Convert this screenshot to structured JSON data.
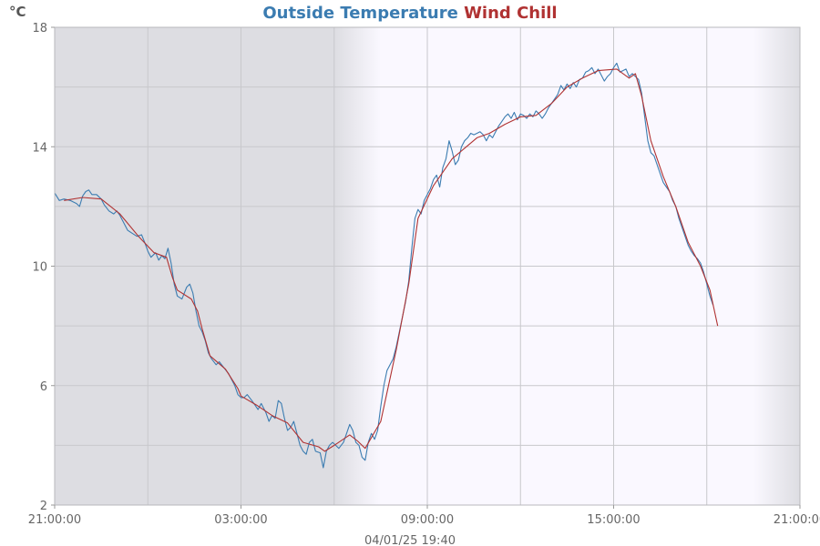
{
  "chart_data": {
    "type": "line",
    "title": [
      {
        "text": "Outside Temperature",
        "color": "#3b7cb1"
      },
      {
        "text": "Wind Chill",
        "color": "#b03232"
      }
    ],
    "ylabel": "°C",
    "footer": "04/01/25 19:40",
    "ylim": [
      2,
      18
    ],
    "yticks": [
      2,
      6,
      10,
      14,
      18
    ],
    "xlim_hours": [
      0,
      24
    ],
    "xtick_labels": [
      {
        "h": 0,
        "label": "21:00:00"
      },
      {
        "h": 6,
        "label": "03:00:00"
      },
      {
        "h": 12,
        "label": "09:00:00"
      },
      {
        "h": 18,
        "label": "15:00:00"
      },
      {
        "h": 24,
        "label": "21:00:00"
      }
    ],
    "x_gridlines_hours": [
      3,
      6,
      9,
      12,
      15,
      18,
      21
    ],
    "night_shading": {
      "night_until_h": 9,
      "dawn_end_h": 10.5,
      "dusk_start_h": 22.5,
      "color": "#dddde2",
      "day_color": "#faf8ff"
    },
    "grid": true,
    "series": [
      {
        "name": "Outside Temperature",
        "color": "#3b7cb1",
        "points": [
          [
            0,
            12.45
          ],
          [
            0.15,
            12.2
          ],
          [
            0.3,
            12.25
          ],
          [
            0.5,
            12.2
          ],
          [
            0.7,
            12.1
          ],
          [
            0.8,
            12.0
          ],
          [
            0.9,
            12.35
          ],
          [
            1.0,
            12.5
          ],
          [
            1.1,
            12.55
          ],
          [
            1.2,
            12.4
          ],
          [
            1.35,
            12.4
          ],
          [
            1.5,
            12.25
          ],
          [
            1.6,
            12.05
          ],
          [
            1.75,
            11.85
          ],
          [
            1.9,
            11.75
          ],
          [
            2.0,
            11.85
          ],
          [
            2.1,
            11.7
          ],
          [
            2.2,
            11.5
          ],
          [
            2.35,
            11.2
          ],
          [
            2.5,
            11.1
          ],
          [
            2.65,
            11.0
          ],
          [
            2.8,
            11.05
          ],
          [
            2.9,
            10.8
          ],
          [
            3.0,
            10.5
          ],
          [
            3.1,
            10.3
          ],
          [
            3.25,
            10.45
          ],
          [
            3.35,
            10.2
          ],
          [
            3.45,
            10.35
          ],
          [
            3.55,
            10.25
          ],
          [
            3.65,
            10.6
          ],
          [
            3.75,
            10.1
          ],
          [
            3.85,
            9.4
          ],
          [
            3.95,
            9.0
          ],
          [
            4.1,
            8.9
          ],
          [
            4.25,
            9.3
          ],
          [
            4.35,
            9.4
          ],
          [
            4.45,
            9.1
          ],
          [
            4.55,
            8.5
          ],
          [
            4.65,
            8.0
          ],
          [
            4.75,
            7.8
          ],
          [
            4.85,
            7.5
          ],
          [
            4.95,
            7.1
          ],
          [
            5.05,
            6.9
          ],
          [
            5.2,
            6.7
          ],
          [
            5.3,
            6.8
          ],
          [
            5.45,
            6.6
          ],
          [
            5.6,
            6.4
          ],
          [
            5.7,
            6.2
          ],
          [
            5.8,
            6.0
          ],
          [
            5.9,
            5.7
          ],
          [
            6.0,
            5.6
          ],
          [
            6.1,
            5.6
          ],
          [
            6.2,
            5.7
          ],
          [
            6.35,
            5.5
          ],
          [
            6.45,
            5.35
          ],
          [
            6.55,
            5.2
          ],
          [
            6.65,
            5.4
          ],
          [
            6.8,
            5.1
          ],
          [
            6.9,
            4.8
          ],
          [
            7.0,
            5.0
          ],
          [
            7.1,
            4.9
          ],
          [
            7.2,
            5.5
          ],
          [
            7.3,
            5.4
          ],
          [
            7.4,
            4.9
          ],
          [
            7.5,
            4.5
          ],
          [
            7.6,
            4.6
          ],
          [
            7.7,
            4.8
          ],
          [
            7.8,
            4.4
          ],
          [
            7.9,
            4.0
          ],
          [
            8.0,
            3.8
          ],
          [
            8.1,
            3.7
          ],
          [
            8.2,
            4.1
          ],
          [
            8.3,
            4.2
          ],
          [
            8.4,
            3.8
          ],
          [
            8.55,
            3.75
          ],
          [
            8.65,
            3.25
          ],
          [
            8.75,
            3.8
          ],
          [
            8.85,
            4.0
          ],
          [
            8.95,
            4.1
          ],
          [
            9.05,
            4.0
          ],
          [
            9.15,
            3.9
          ],
          [
            9.3,
            4.1
          ],
          [
            9.4,
            4.4
          ],
          [
            9.5,
            4.7
          ],
          [
            9.6,
            4.5
          ],
          [
            9.7,
            4.1
          ],
          [
            9.8,
            4.0
          ],
          [
            9.9,
            3.6
          ],
          [
            10.0,
            3.5
          ],
          [
            10.1,
            4.1
          ],
          [
            10.2,
            4.4
          ],
          [
            10.3,
            4.2
          ],
          [
            10.4,
            4.5
          ],
          [
            10.5,
            5.3
          ],
          [
            10.6,
            6.0
          ],
          [
            10.7,
            6.5
          ],
          [
            10.8,
            6.7
          ],
          [
            10.9,
            6.9
          ],
          [
            11.0,
            7.3
          ],
          [
            11.1,
            7.8
          ],
          [
            11.2,
            8.3
          ],
          [
            11.3,
            8.8
          ],
          [
            11.4,
            9.5
          ],
          [
            11.5,
            10.6
          ],
          [
            11.6,
            11.6
          ],
          [
            11.7,
            11.9
          ],
          [
            11.8,
            11.75
          ],
          [
            11.9,
            12.2
          ],
          [
            12.0,
            12.4
          ],
          [
            12.1,
            12.6
          ],
          [
            12.2,
            12.9
          ],
          [
            12.3,
            13.05
          ],
          [
            12.4,
            12.65
          ],
          [
            12.5,
            13.3
          ],
          [
            12.6,
            13.6
          ],
          [
            12.7,
            14.2
          ],
          [
            12.8,
            13.85
          ],
          [
            12.9,
            13.4
          ],
          [
            13.0,
            13.55
          ],
          [
            13.1,
            14.0
          ],
          [
            13.2,
            14.2
          ],
          [
            13.3,
            14.3
          ],
          [
            13.4,
            14.45
          ],
          [
            13.5,
            14.4
          ],
          [
            13.6,
            14.45
          ],
          [
            13.7,
            14.5
          ],
          [
            13.8,
            14.4
          ],
          [
            13.9,
            14.2
          ],
          [
            14.0,
            14.4
          ],
          [
            14.1,
            14.3
          ],
          [
            14.2,
            14.5
          ],
          [
            14.3,
            14.7
          ],
          [
            14.4,
            14.85
          ],
          [
            14.5,
            15.0
          ],
          [
            14.6,
            15.1
          ],
          [
            14.7,
            14.95
          ],
          [
            14.8,
            15.15
          ],
          [
            14.9,
            14.9
          ],
          [
            15.0,
            15.1
          ],
          [
            15.1,
            15.05
          ],
          [
            15.2,
            14.95
          ],
          [
            15.3,
            15.1
          ],
          [
            15.4,
            15.0
          ],
          [
            15.5,
            15.2
          ],
          [
            15.6,
            15.1
          ],
          [
            15.7,
            14.95
          ],
          [
            15.8,
            15.1
          ],
          [
            15.9,
            15.3
          ],
          [
            16.0,
            15.45
          ],
          [
            16.1,
            15.6
          ],
          [
            16.2,
            15.75
          ],
          [
            16.3,
            16.05
          ],
          [
            16.4,
            15.9
          ],
          [
            16.5,
            16.1
          ],
          [
            16.6,
            15.95
          ],
          [
            16.7,
            16.15
          ],
          [
            16.8,
            16.0
          ],
          [
            16.9,
            16.25
          ],
          [
            17.0,
            16.3
          ],
          [
            17.1,
            16.5
          ],
          [
            17.2,
            16.55
          ],
          [
            17.3,
            16.65
          ],
          [
            17.4,
            16.45
          ],
          [
            17.5,
            16.6
          ],
          [
            17.6,
            16.4
          ],
          [
            17.7,
            16.2
          ],
          [
            17.8,
            16.35
          ],
          [
            17.9,
            16.45
          ],
          [
            18.0,
            16.65
          ],
          [
            18.1,
            16.8
          ],
          [
            18.2,
            16.5
          ],
          [
            18.3,
            16.55
          ],
          [
            18.4,
            16.6
          ],
          [
            18.5,
            16.35
          ],
          [
            18.6,
            16.45
          ],
          [
            18.7,
            16.35
          ],
          [
            18.8,
            16.25
          ],
          [
            18.9,
            15.8
          ],
          [
            19.0,
            15.0
          ],
          [
            19.1,
            14.2
          ],
          [
            19.2,
            13.8
          ],
          [
            19.3,
            13.7
          ],
          [
            19.4,
            13.4
          ],
          [
            19.5,
            13.1
          ],
          [
            19.6,
            12.8
          ],
          [
            19.7,
            12.65
          ],
          [
            19.8,
            12.5
          ],
          [
            19.9,
            12.2
          ],
          [
            20.0,
            12.0
          ],
          [
            20.1,
            11.6
          ],
          [
            20.2,
            11.3
          ],
          [
            20.3,
            11.0
          ],
          [
            20.4,
            10.7
          ],
          [
            20.5,
            10.5
          ],
          [
            20.6,
            10.35
          ],
          [
            20.7,
            10.25
          ],
          [
            20.8,
            10.1
          ],
          [
            20.9,
            9.8
          ],
          [
            21.0,
            9.4
          ],
          [
            21.1,
            9.0
          ],
          [
            21.2,
            8.7
          ]
        ]
      },
      {
        "name": "Wind Chill",
        "color": "#b03232",
        "points": [
          [
            0.3,
            12.2
          ],
          [
            0.9,
            12.3
          ],
          [
            1.5,
            12.25
          ],
          [
            2.1,
            11.75
          ],
          [
            2.7,
            11.0
          ],
          [
            3.2,
            10.45
          ],
          [
            3.6,
            10.3
          ],
          [
            3.8,
            9.6
          ],
          [
            3.95,
            9.2
          ],
          [
            4.4,
            8.9
          ],
          [
            4.6,
            8.5
          ],
          [
            4.75,
            7.9
          ],
          [
            5.0,
            7.0
          ],
          [
            5.5,
            6.55
          ],
          [
            5.9,
            5.9
          ],
          [
            6.0,
            5.65
          ],
          [
            6.5,
            5.35
          ],
          [
            7.0,
            5.0
          ],
          [
            7.5,
            4.75
          ],
          [
            8.0,
            4.1
          ],
          [
            8.5,
            3.95
          ],
          [
            8.7,
            3.8
          ],
          [
            9.0,
            4.0
          ],
          [
            9.5,
            4.35
          ],
          [
            9.75,
            4.15
          ],
          [
            10.0,
            3.9
          ],
          [
            10.5,
            4.8
          ],
          [
            11.0,
            7.2
          ],
          [
            11.4,
            9.4
          ],
          [
            11.7,
            11.6
          ],
          [
            12.2,
            12.7
          ],
          [
            12.8,
            13.6
          ],
          [
            13.2,
            13.95
          ],
          [
            13.6,
            14.3
          ],
          [
            14.0,
            14.45
          ],
          [
            14.5,
            14.75
          ],
          [
            15.0,
            15.0
          ],
          [
            15.5,
            15.05
          ],
          [
            16.0,
            15.45
          ],
          [
            16.5,
            16.0
          ],
          [
            17.0,
            16.3
          ],
          [
            17.5,
            16.55
          ],
          [
            18.1,
            16.6
          ],
          [
            18.5,
            16.3
          ],
          [
            18.7,
            16.45
          ],
          [
            18.9,
            15.7
          ],
          [
            19.2,
            14.2
          ],
          [
            19.6,
            13.0
          ],
          [
            20.0,
            12.0
          ],
          [
            20.4,
            10.8
          ],
          [
            20.8,
            10.0
          ],
          [
            21.1,
            9.2
          ],
          [
            21.35,
            8.0
          ]
        ]
      }
    ]
  }
}
